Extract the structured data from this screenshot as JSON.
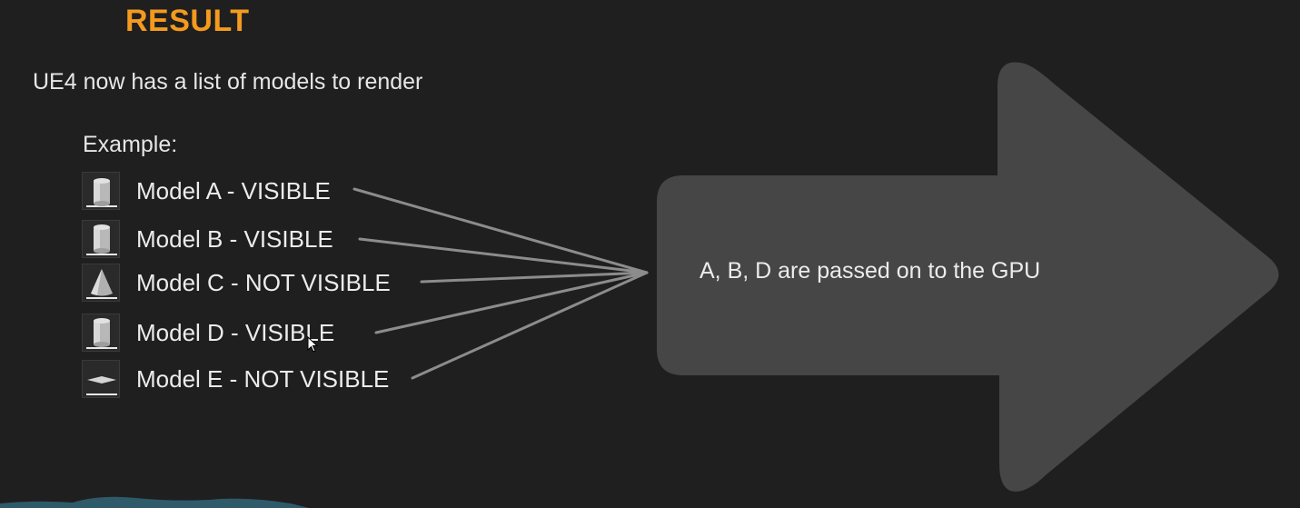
{
  "slide": {
    "title": "RESULT",
    "subtitle": "UE4 now has a list of models to render",
    "example_label": "Example:",
    "models": [
      {
        "label": "Model A - VISIBLE",
        "shape": "cylinder-icon"
      },
      {
        "label": "Model B - VISIBLE",
        "shape": "cylinder-icon"
      },
      {
        "label": "Model C - NOT VISIBLE",
        "shape": "cone-icon"
      },
      {
        "label": "Model D - VISIBLE",
        "shape": "cylinder-icon"
      },
      {
        "label": "Model E - NOT VISIBLE",
        "shape": "plane-icon"
      }
    ],
    "arrow_text": "A, B, D are passed on to the GPU"
  },
  "colors": {
    "background": "#1f1f1f",
    "title": "#f39a1f",
    "arrow": "#464646",
    "connector": "#8a8a8a"
  }
}
